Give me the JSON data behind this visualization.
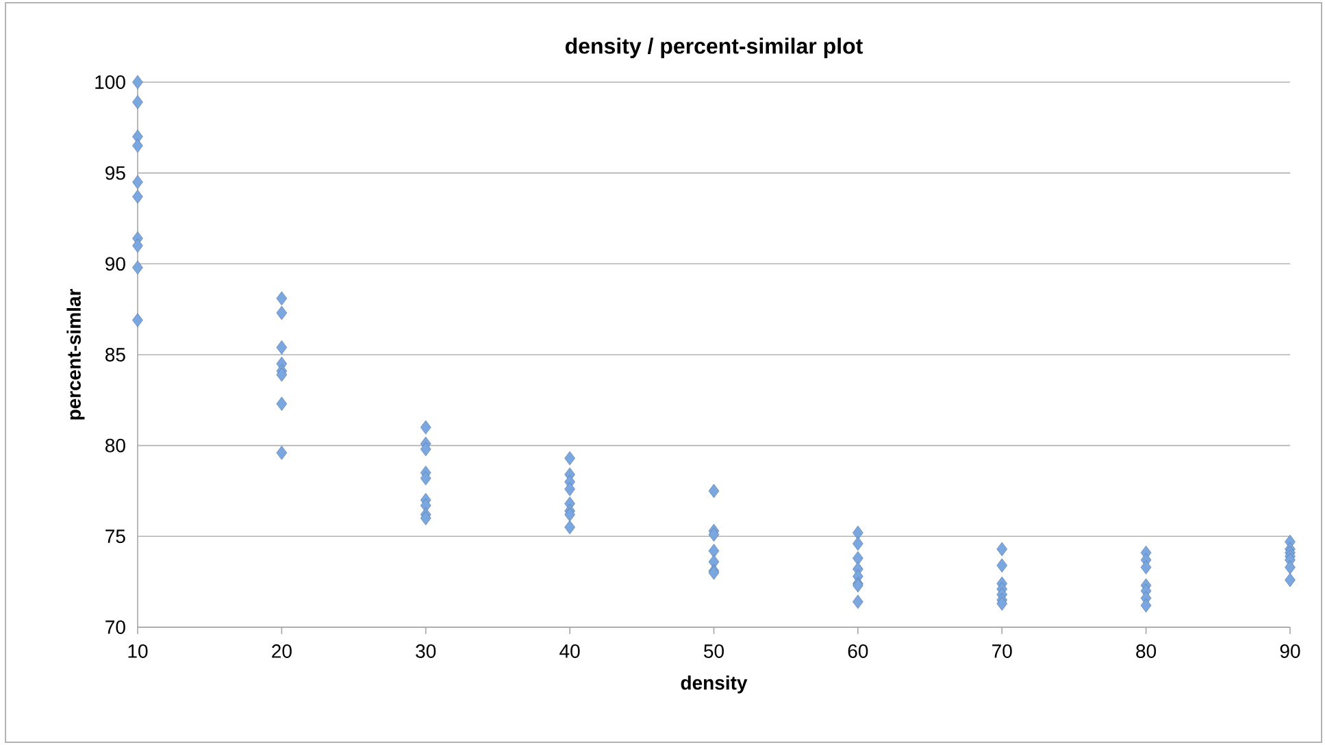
{
  "chart_data": {
    "type": "scatter",
    "title": "density / percent-similar plot",
    "xlabel": "density",
    "ylabel": "percent-simlar",
    "xlim": [
      10,
      90
    ],
    "xticks": [
      10,
      20,
      30,
      40,
      50,
      60,
      70,
      80,
      90
    ],
    "ylim": [
      70,
      100
    ],
    "yticks": [
      70,
      75,
      80,
      85,
      90,
      95,
      100
    ],
    "grid": "y",
    "marker": "diamond",
    "series": [
      {
        "color": "#7ba7e0",
        "x": [
          10,
          10,
          10,
          10,
          10,
          10,
          10,
          10,
          10,
          10,
          20,
          20,
          20,
          20,
          20,
          20,
          20,
          20,
          30,
          30,
          30,
          30,
          30,
          30,
          30,
          30,
          30,
          40,
          40,
          40,
          40,
          40,
          40,
          40,
          40,
          50,
          50,
          50,
          50,
          50,
          50,
          50,
          60,
          60,
          60,
          60,
          60,
          60,
          60,
          60,
          70,
          70,
          70,
          70,
          70,
          70,
          70,
          80,
          80,
          80,
          80,
          80,
          80,
          80,
          90,
          90,
          90,
          90,
          90,
          90,
          90
        ],
        "values": [
          100,
          98.9,
          97,
          96.5,
          94.5,
          93.7,
          91.4,
          91,
          89.8,
          86.9,
          88.1,
          87.3,
          85.4,
          84.5,
          84.1,
          83.9,
          82.3,
          79.6,
          81,
          80.1,
          79.8,
          78.5,
          78.2,
          77,
          76.7,
          76.2,
          76,
          79.3,
          78.4,
          78,
          77.6,
          76.8,
          76.4,
          76.2,
          75.5,
          77.5,
          75.3,
          75.1,
          74.2,
          73.6,
          73.1,
          73,
          75.2,
          74.6,
          73.8,
          73.2,
          72.8,
          72.4,
          72.3,
          71.4,
          74.3,
          73.4,
          72.4,
          72.1,
          71.8,
          71.5,
          71.3,
          74.1,
          73.7,
          73.3,
          72.3,
          72,
          71.6,
          71.2,
          74.7,
          74.3,
          74.1,
          73.9,
          73.7,
          73.3,
          72.6
        ]
      }
    ]
  }
}
